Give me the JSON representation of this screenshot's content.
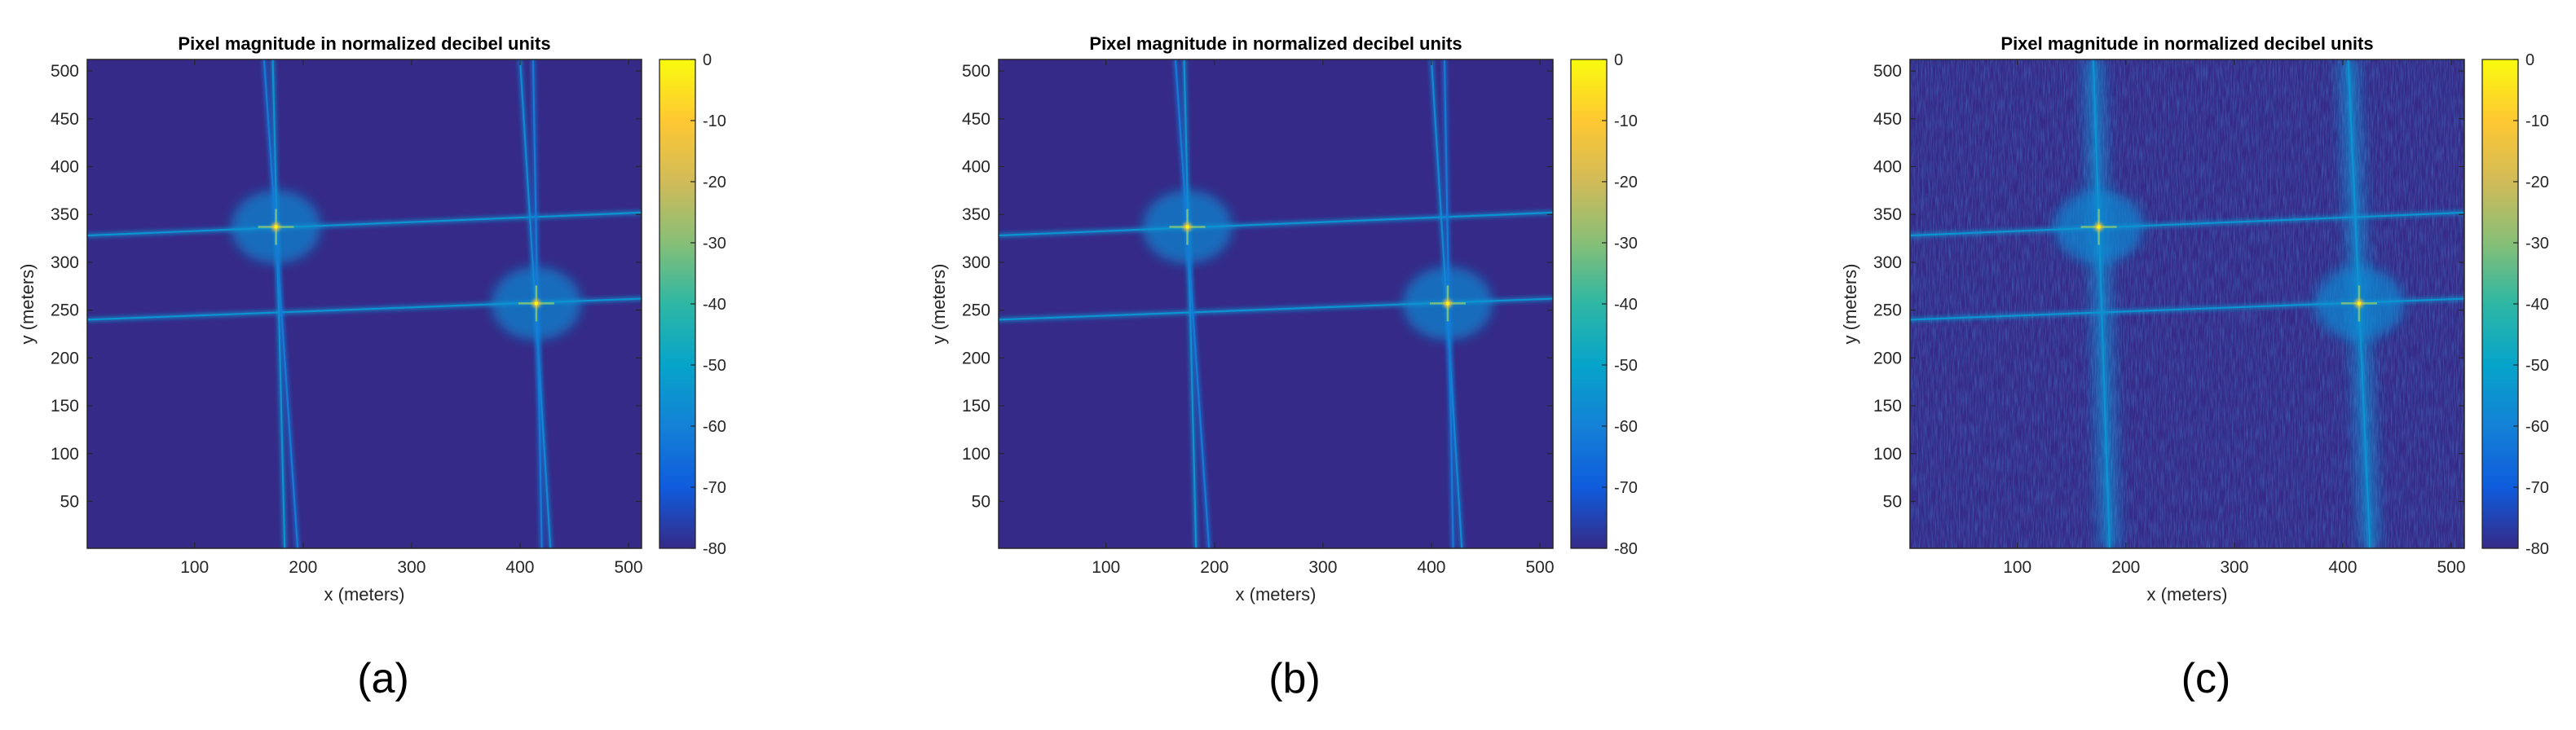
{
  "figure": {
    "panel_labels": [
      "(a)",
      "(b)",
      "(c)"
    ]
  },
  "colors": {
    "background_plot": "#3b2ea8",
    "colormap": "parula",
    "colormap_stops": [
      "#352a87",
      "#0f5cdd",
      "#1481d6",
      "#06a4ca",
      "#2eb7a4",
      "#87bf77",
      "#d1bb59",
      "#fec832",
      "#f9fb0e"
    ]
  },
  "chart_data": [
    {
      "type": "heatmap",
      "title": "Pixel magnitude in normalized decibel units",
      "xlabel": "x (meters)",
      "ylabel": "y (meters)",
      "xlim": [
        1,
        512
      ],
      "ylim": [
        1,
        512
      ],
      "xticks": [
        100,
        200,
        300,
        400,
        500
      ],
      "yticks": [
        50,
        100,
        150,
        200,
        250,
        300,
        350,
        400,
        450,
        500
      ],
      "colorbar": {
        "ticks": [
          0,
          -10,
          -20,
          -30,
          -40,
          -50,
          -60,
          -70,
          -80
        ],
        "clim": [
          -80,
          0
        ],
        "colormap": "parula"
      },
      "background_db": -80,
      "peaks": [
        {
          "x": 175,
          "y": 337,
          "db": 0
        },
        {
          "x": 415,
          "y": 257,
          "db": 0
        }
      ],
      "streaks": [
        {
          "orientation": "horizontal",
          "x0": 1,
          "y0": 328,
          "x1": 512,
          "y1": 352,
          "db": -55
        },
        {
          "orientation": "horizontal",
          "x0": 1,
          "y0": 240,
          "x1": 512,
          "y1": 262,
          "db": -55
        },
        {
          "orientation": "vertical",
          "x0": 172,
          "y0": 512,
          "x1": 183,
          "y1": 1,
          "db": -55
        },
        {
          "orientation": "vertical",
          "x0": 164,
          "y0": 512,
          "x1": 195,
          "y1": 1,
          "db": -62
        },
        {
          "orientation": "vertical",
          "x0": 400,
          "y0": 512,
          "x1": 428,
          "y1": 1,
          "db": -58
        },
        {
          "orientation": "vertical",
          "x0": 412,
          "y0": 512,
          "x1": 420,
          "y1": 1,
          "db": -62
        }
      ],
      "diffuse": false
    },
    {
      "type": "heatmap",
      "title": "Pixel magnitude in normalized decibel units",
      "xlabel": "x (meters)",
      "ylabel": "y (meters)",
      "xlim": [
        1,
        512
      ],
      "ylim": [
        1,
        512
      ],
      "xticks": [
        100,
        200,
        300,
        400,
        500
      ],
      "yticks": [
        50,
        100,
        150,
        200,
        250,
        300,
        350,
        400,
        450,
        500
      ],
      "colorbar": {
        "ticks": [
          0,
          -10,
          -20,
          -30,
          -40,
          -50,
          -60,
          -70,
          -80
        ],
        "clim": [
          -80,
          0
        ],
        "colormap": "parula"
      },
      "background_db": -80,
      "peaks": [
        {
          "x": 175,
          "y": 337,
          "db": 0
        },
        {
          "x": 415,
          "y": 257,
          "db": 0
        }
      ],
      "streaks": [
        {
          "orientation": "horizontal",
          "x0": 1,
          "y0": 328,
          "x1": 512,
          "y1": 352,
          "db": -55
        },
        {
          "orientation": "horizontal",
          "x0": 1,
          "y0": 240,
          "x1": 512,
          "y1": 262,
          "db": -55
        },
        {
          "orientation": "vertical",
          "x0": 172,
          "y0": 512,
          "x1": 183,
          "y1": 1,
          "db": -55
        },
        {
          "orientation": "vertical",
          "x0": 164,
          "y0": 512,
          "x1": 195,
          "y1": 1,
          "db": -62
        },
        {
          "orientation": "vertical",
          "x0": 400,
          "y0": 512,
          "x1": 428,
          "y1": 1,
          "db": -58
        },
        {
          "orientation": "vertical",
          "x0": 412,
          "y0": 512,
          "x1": 420,
          "y1": 1,
          "db": -62
        }
      ],
      "diffuse": false
    },
    {
      "type": "heatmap",
      "title": "Pixel magnitude in normalized decibel units",
      "xlabel": "x (meters)",
      "ylabel": "y (meters)",
      "xlim": [
        1,
        512
      ],
      "ylim": [
        1,
        512
      ],
      "xticks": [
        100,
        200,
        300,
        400,
        500
      ],
      "yticks": [
        50,
        100,
        150,
        200,
        250,
        300,
        350,
        400,
        450,
        500
      ],
      "colorbar": {
        "ticks": [
          0,
          -10,
          -20,
          -30,
          -40,
          -50,
          -60,
          -70,
          -80
        ],
        "clim": [
          -80,
          0
        ],
        "colormap": "parula"
      },
      "background_db": -80,
      "peaks": [
        {
          "x": 175,
          "y": 337,
          "db": 0
        },
        {
          "x": 415,
          "y": 257,
          "db": 0
        }
      ],
      "streaks": [
        {
          "orientation": "horizontal",
          "x0": 1,
          "y0": 328,
          "x1": 512,
          "y1": 352,
          "db": -55
        },
        {
          "orientation": "horizontal",
          "x0": 1,
          "y0": 240,
          "x1": 512,
          "y1": 262,
          "db": -55
        },
        {
          "orientation": "vertical",
          "x0": 170,
          "y0": 512,
          "x1": 185,
          "y1": 1,
          "db": -55
        },
        {
          "orientation": "vertical",
          "x0": 405,
          "y0": 512,
          "x1": 425,
          "y1": 1,
          "db": -55
        }
      ],
      "diffuse": true
    }
  ]
}
